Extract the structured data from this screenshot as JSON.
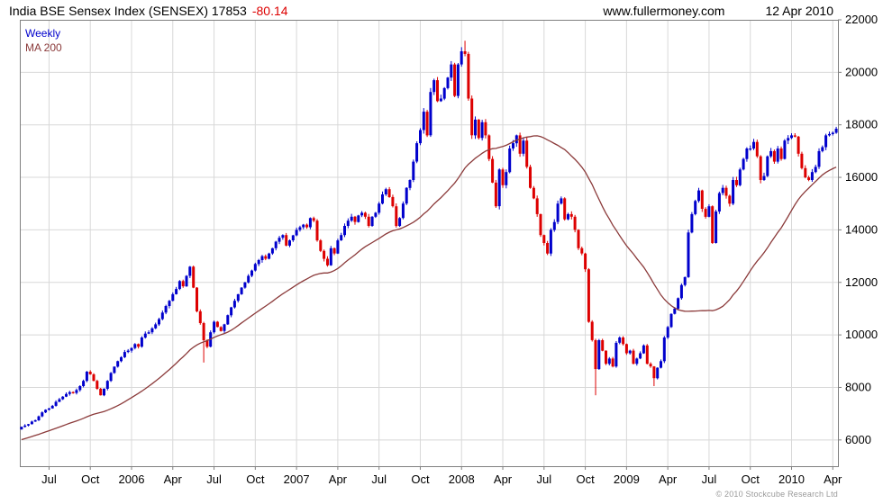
{
  "header": {
    "title": "India BSE Sensex Index (SENSEX) 17853",
    "change": "-80.14",
    "site": "www.fullermoney.com",
    "date": "12 Apr 2010"
  },
  "legend": {
    "interval": "Weekly",
    "ma": "MA 200"
  },
  "footer": {
    "copyright": "© 2010 Stockcube Research Ltd"
  },
  "colors": {
    "up": "#0000cc",
    "down": "#dd0000",
    "ma": "#8b3a3a",
    "grid": "#d8d8d8",
    "axis": "#808080",
    "text": "#000000"
  },
  "chart_data": {
    "type": "candlestick",
    "title": "India BSE Sensex Index (SENSEX)",
    "interval": "Weekly",
    "overlay": "MA 200",
    "last_price": 17853,
    "change": -80.14,
    "xlabel": "",
    "ylabel": "",
    "ylim": [
      5000,
      22000
    ],
    "yticks": [
      6000,
      8000,
      10000,
      12000,
      14000,
      16000,
      18000,
      20000,
      22000
    ],
    "xticklabels": [
      "Jul",
      "Oct",
      "2006",
      "Apr",
      "Jul",
      "Oct",
      "2007",
      "Apr",
      "Jul",
      "Oct",
      "2008",
      "Apr",
      "Jul",
      "Oct",
      "2009",
      "Apr",
      "Jul",
      "Oct",
      "2010",
      "Apr"
    ],
    "xtick_indices": [
      8,
      20,
      32,
      44,
      56,
      68,
      80,
      92,
      104,
      116,
      128,
      140,
      152,
      164,
      176,
      188,
      200,
      212,
      224,
      236
    ],
    "ma_window": 40,
    "pre_closes": [
      4900,
      4950,
      5000,
      5050,
      5100,
      5200,
      5250,
      5300,
      5400,
      5500,
      5600,
      5650,
      5700,
      5800,
      5900,
      6000,
      6100,
      6150,
      6200,
      6300,
      6400,
      6450,
      6500,
      6450,
      6400,
      6350,
      6400,
      6450,
      6500,
      6400,
      6300,
      6250,
      6300,
      6350,
      6400,
      6450,
      6350,
      6300,
      6350,
      6400
    ],
    "closes": [
      6500,
      6550,
      6600,
      6700,
      6750,
      6900,
      7050,
      7150,
      7200,
      7300,
      7450,
      7550,
      7650,
      7750,
      7820,
      7790,
      7900,
      8050,
      8250,
      8600,
      8500,
      8250,
      7950,
      7700,
      7950,
      8250,
      8550,
      8790,
      9000,
      9150,
      9350,
      9400,
      9500,
      9650,
      9550,
      9900,
      10050,
      10100,
      10250,
      10400,
      10600,
      10850,
      11100,
      11300,
      11550,
      11750,
      12050,
      11850,
      12250,
      12600,
      11800,
      10900,
      10450,
      9800,
      9550,
      10100,
      10500,
      10300,
      10150,
      10400,
      10750,
      11050,
      11300,
      11550,
      11800,
      12000,
      12250,
      12450,
      12700,
      12850,
      13000,
      12900,
      13100,
      13300,
      13550,
      13700,
      13800,
      13400,
      13600,
      13790,
      14000,
      14100,
      14200,
      14100,
      14450,
      14350,
      13600,
      13200,
      12900,
      12650,
      13300,
      13100,
      13600,
      13800,
      14150,
      14350,
      14500,
      14300,
      14550,
      14650,
      14500,
      14150,
      14500,
      14650,
      15000,
      15350,
      15550,
      15250,
      14900,
      14150,
      14450,
      15000,
      15600,
      15900,
      16600,
      17300,
      17800,
      18500,
      17600,
      19250,
      19700,
      18900,
      19000,
      19400,
      19800,
      20300,
      19100,
      20300,
      20800,
      20700,
      19000,
      17600,
      18200,
      17500,
      18100,
      17600,
      16700,
      15800,
      14900,
      16300,
      15700,
      16200,
      17100,
      17300,
      17600,
      16900,
      17400,
      16400,
      15600,
      15200,
      14600,
      13800,
      13500,
      13100,
      14000,
      14300,
      15000,
      15200,
      14400,
      14600,
      14500,
      14000,
      13300,
      13100,
      12500,
      10500,
      9800,
      8700,
      9800,
      9400,
      8900,
      9100,
      8800,
      9700,
      9900,
      9650,
      9300,
      9400,
      8900,
      9100,
      9300,
      9600,
      8900,
      8800,
      8350,
      8750,
      9000,
      9900,
      10300,
      10800,
      11000,
      11400,
      11900,
      12200,
      13900,
      14600,
      15100,
      15500,
      14800,
      14500,
      14900,
      13500,
      14700,
      15400,
      15600,
      15300,
      15000,
      15900,
      15700,
      16300,
      16700,
      17100,
      17100,
      17350,
      16800,
      15900,
      16050,
      16800,
      17000,
      16600,
      17100,
      16700,
      17400,
      17500,
      17600,
      17550,
      16900,
      16350,
      16000,
      15900,
      16200,
      16400,
      17000,
      17150,
      17600,
      17650,
      17700,
      17853
    ],
    "wick_overrides": {
      "53": {
        "low": 8950
      },
      "129": {
        "high": 21200
      },
      "167": {
        "low": 7700
      },
      "184": {
        "low": 8050
      }
    }
  }
}
